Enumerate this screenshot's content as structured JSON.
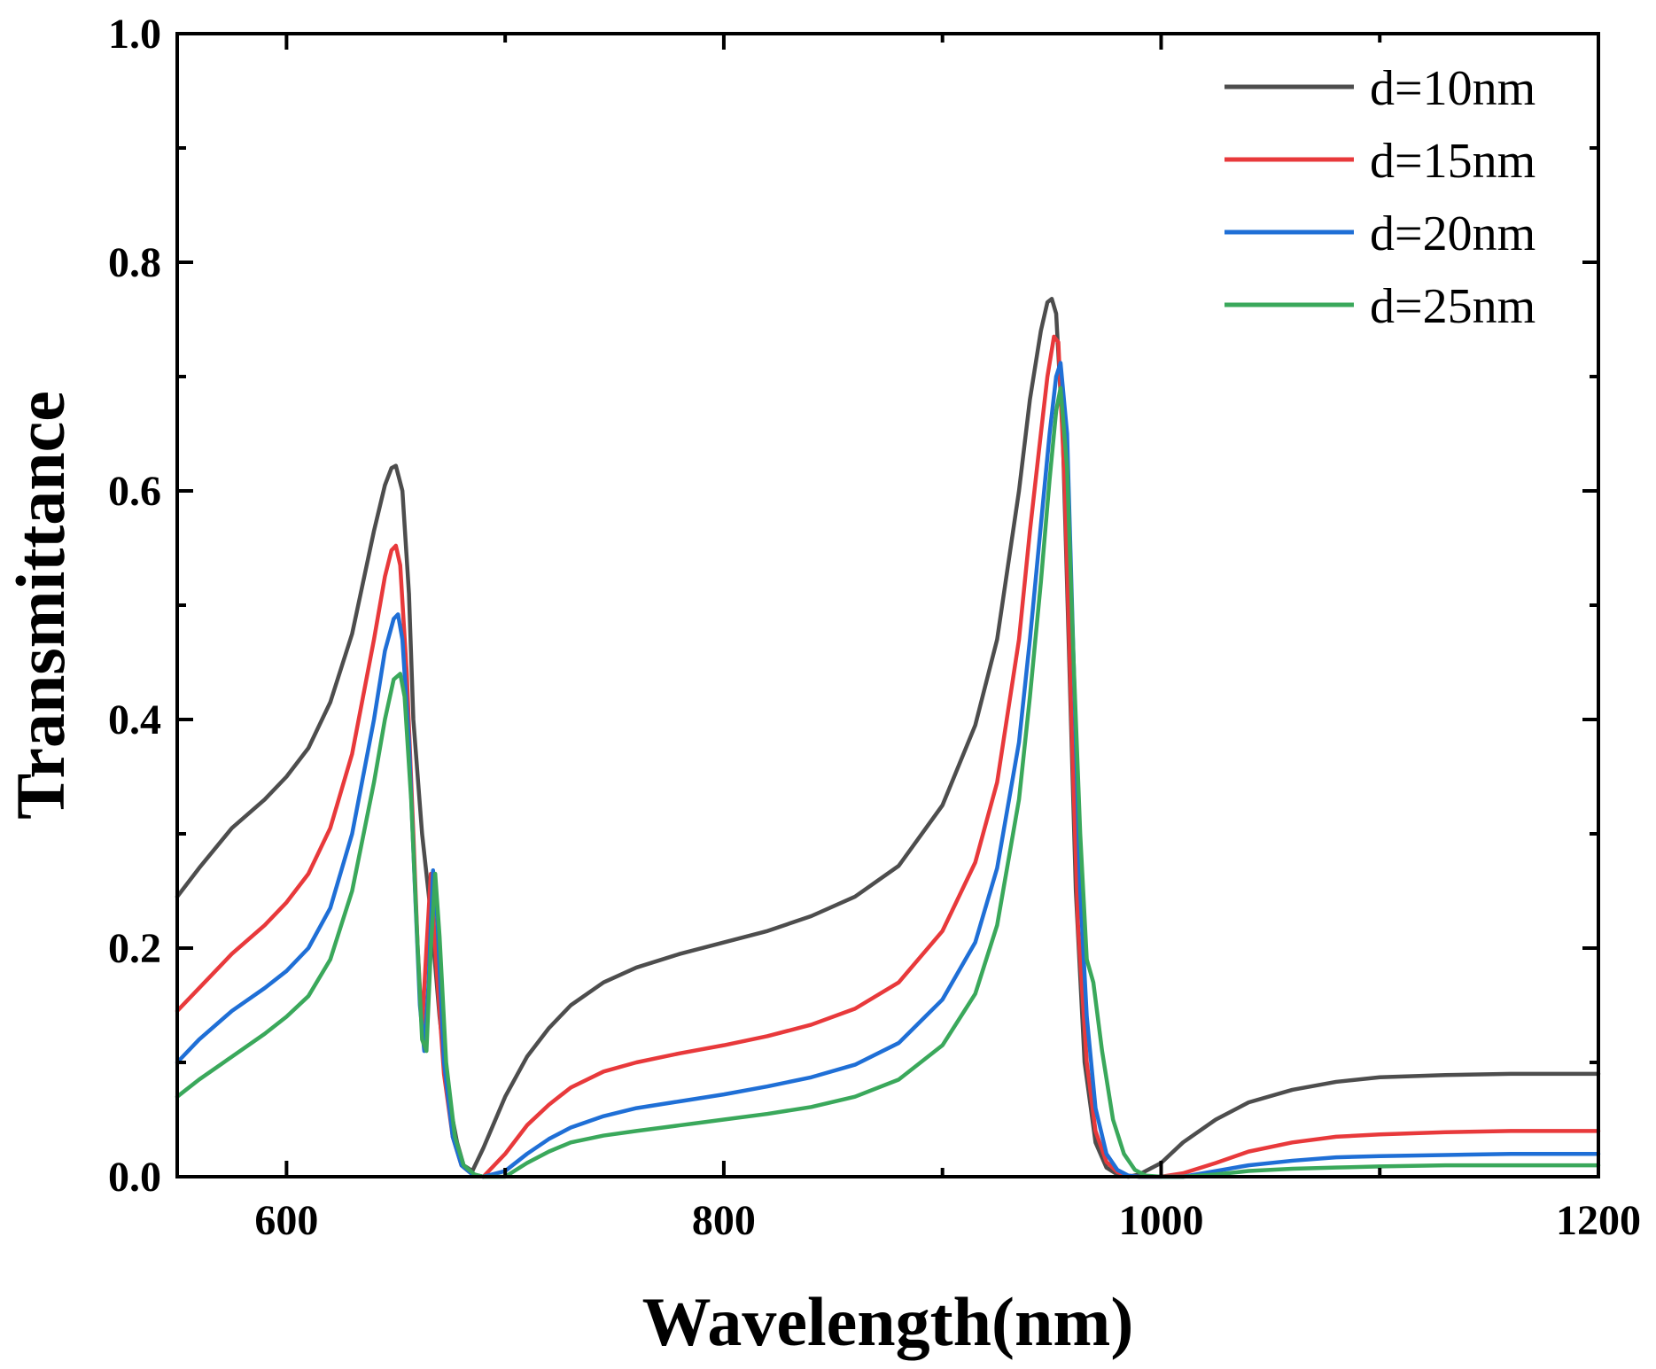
{
  "chart_data": {
    "type": "line",
    "title": "",
    "xlabel": "Wavelength(nm)",
    "ylabel": "Transmittance",
    "xlim": [
      550,
      1200
    ],
    "ylim": [
      0.0,
      1.0
    ],
    "xticks": [
      600,
      800,
      1000,
      1200
    ],
    "xtick_labels": [
      "600",
      "800",
      "1000",
      "1200"
    ],
    "yticks": [
      0.0,
      0.2,
      0.4,
      0.6,
      0.8,
      1.0
    ],
    "ytick_labels": [
      "0.0",
      "0.2",
      "0.4",
      "0.6",
      "0.8",
      "1.0"
    ],
    "grid": false,
    "legend_position": "top-right",
    "series": [
      {
        "name": "d=10nm",
        "color": "#4d4d4d",
        "x": [
          550,
          560,
          575,
          590,
          600,
          610,
          620,
          630,
          640,
          645,
          648,
          650,
          653,
          656,
          658,
          662,
          666,
          670,
          674,
          678,
          681,
          685,
          690,
          700,
          710,
          720,
          730,
          745,
          760,
          780,
          800,
          820,
          840,
          860,
          880,
          900,
          915,
          925,
          935,
          940,
          945,
          948,
          950,
          952,
          955,
          958,
          961,
          965,
          970,
          975,
          980,
          985,
          990,
          1000,
          1010,
          1025,
          1040,
          1060,
          1080,
          1100,
          1130,
          1160,
          1200
        ],
        "y": [
          0.245,
          0.27,
          0.305,
          0.33,
          0.35,
          0.375,
          0.415,
          0.475,
          0.565,
          0.605,
          0.62,
          0.622,
          0.6,
          0.51,
          0.4,
          0.3,
          0.23,
          0.14,
          0.07,
          0.03,
          0.01,
          0.005,
          0.025,
          0.07,
          0.105,
          0.13,
          0.15,
          0.17,
          0.183,
          0.195,
          0.205,
          0.215,
          0.228,
          0.245,
          0.272,
          0.325,
          0.395,
          0.47,
          0.6,
          0.68,
          0.74,
          0.765,
          0.768,
          0.755,
          0.65,
          0.45,
          0.25,
          0.1,
          0.03,
          0.008,
          0.002,
          0.0,
          0.002,
          0.012,
          0.03,
          0.05,
          0.065,
          0.076,
          0.083,
          0.087,
          0.089,
          0.09,
          0.09
        ]
      },
      {
        "name": "d=15nm",
        "color": "#e8393b",
        "x": [
          550,
          560,
          575,
          590,
          600,
          610,
          620,
          630,
          640,
          645,
          648,
          650,
          652,
          655,
          658,
          660,
          662,
          664,
          666,
          668,
          672,
          676,
          680,
          685,
          690,
          700,
          710,
          720,
          730,
          745,
          760,
          780,
          800,
          820,
          840,
          860,
          880,
          900,
          915,
          925,
          935,
          940,
          945,
          948,
          951,
          953,
          956,
          959,
          962,
          966,
          970,
          975,
          980,
          985,
          990,
          995,
          1000,
          1010,
          1025,
          1040,
          1060,
          1080,
          1100,
          1130,
          1160,
          1200
        ],
        "y": [
          0.145,
          0.165,
          0.195,
          0.22,
          0.24,
          0.265,
          0.305,
          0.37,
          0.47,
          0.525,
          0.548,
          0.552,
          0.535,
          0.44,
          0.3,
          0.2,
          0.13,
          0.2,
          0.265,
          0.2,
          0.09,
          0.035,
          0.01,
          0.002,
          0.0,
          0.02,
          0.045,
          0.063,
          0.078,
          0.092,
          0.1,
          0.108,
          0.115,
          0.123,
          0.133,
          0.147,
          0.17,
          0.215,
          0.275,
          0.345,
          0.47,
          0.565,
          0.65,
          0.7,
          0.735,
          0.73,
          0.6,
          0.4,
          0.22,
          0.1,
          0.04,
          0.013,
          0.004,
          0.001,
          0.0,
          0.0,
          0.0,
          0.003,
          0.012,
          0.022,
          0.03,
          0.035,
          0.037,
          0.039,
          0.04,
          0.04
        ]
      },
      {
        "name": "d=20nm",
        "color": "#1f6fd6",
        "x": [
          550,
          560,
          575,
          590,
          600,
          610,
          620,
          630,
          640,
          645,
          649,
          651,
          653,
          656,
          659,
          661,
          663,
          665,
          667,
          669,
          672,
          676,
          680,
          685,
          690,
          700,
          710,
          720,
          730,
          745,
          760,
          780,
          800,
          820,
          840,
          860,
          880,
          900,
          915,
          925,
          935,
          940,
          945,
          949,
          952,
          954,
          957,
          960,
          963,
          966,
          970,
          975,
          980,
          985,
          990,
          995,
          1000,
          1010,
          1025,
          1040,
          1060,
          1080,
          1100,
          1130,
          1160,
          1200
        ],
        "y": [
          0.1,
          0.12,
          0.145,
          0.165,
          0.18,
          0.2,
          0.235,
          0.3,
          0.4,
          0.46,
          0.488,
          0.492,
          0.47,
          0.38,
          0.24,
          0.15,
          0.11,
          0.17,
          0.268,
          0.225,
          0.1,
          0.035,
          0.01,
          0.002,
          0.0,
          0.005,
          0.02,
          0.033,
          0.043,
          0.053,
          0.06,
          0.066,
          0.072,
          0.079,
          0.087,
          0.098,
          0.117,
          0.155,
          0.205,
          0.27,
          0.38,
          0.47,
          0.57,
          0.65,
          0.7,
          0.712,
          0.65,
          0.45,
          0.25,
          0.14,
          0.06,
          0.02,
          0.006,
          0.001,
          0.0,
          0.0,
          0.0,
          0.0,
          0.005,
          0.01,
          0.014,
          0.017,
          0.018,
          0.019,
          0.02,
          0.02
        ]
      },
      {
        "name": "d=25nm",
        "color": "#3aa85b",
        "x": [
          550,
          560,
          575,
          590,
          600,
          610,
          620,
          630,
          640,
          645,
          649,
          652,
          654,
          657,
          660,
          662,
          664,
          666,
          668,
          670,
          673,
          677,
          681,
          686,
          690,
          700,
          710,
          720,
          730,
          745,
          760,
          780,
          800,
          820,
          840,
          860,
          880,
          900,
          915,
          925,
          935,
          940,
          945,
          949,
          952,
          954,
          957,
          960,
          963,
          966,
          969,
          973,
          978,
          983,
          988,
          993,
          1000,
          1010,
          1025,
          1040,
          1060,
          1080,
          1100,
          1130,
          1160,
          1200
        ],
        "y": [
          0.07,
          0.085,
          0.105,
          0.125,
          0.14,
          0.158,
          0.19,
          0.25,
          0.345,
          0.4,
          0.435,
          0.44,
          0.42,
          0.33,
          0.2,
          0.12,
          0.11,
          0.2,
          0.265,
          0.21,
          0.1,
          0.035,
          0.01,
          0.002,
          0.0,
          0.0,
          0.012,
          0.022,
          0.03,
          0.036,
          0.04,
          0.045,
          0.05,
          0.055,
          0.061,
          0.07,
          0.085,
          0.115,
          0.16,
          0.22,
          0.33,
          0.42,
          0.52,
          0.61,
          0.67,
          0.69,
          0.62,
          0.45,
          0.3,
          0.19,
          0.17,
          0.11,
          0.05,
          0.02,
          0.006,
          0.001,
          0.0,
          0.0,
          0.002,
          0.005,
          0.007,
          0.008,
          0.009,
          0.01,
          0.01,
          0.01
        ]
      }
    ]
  }
}
